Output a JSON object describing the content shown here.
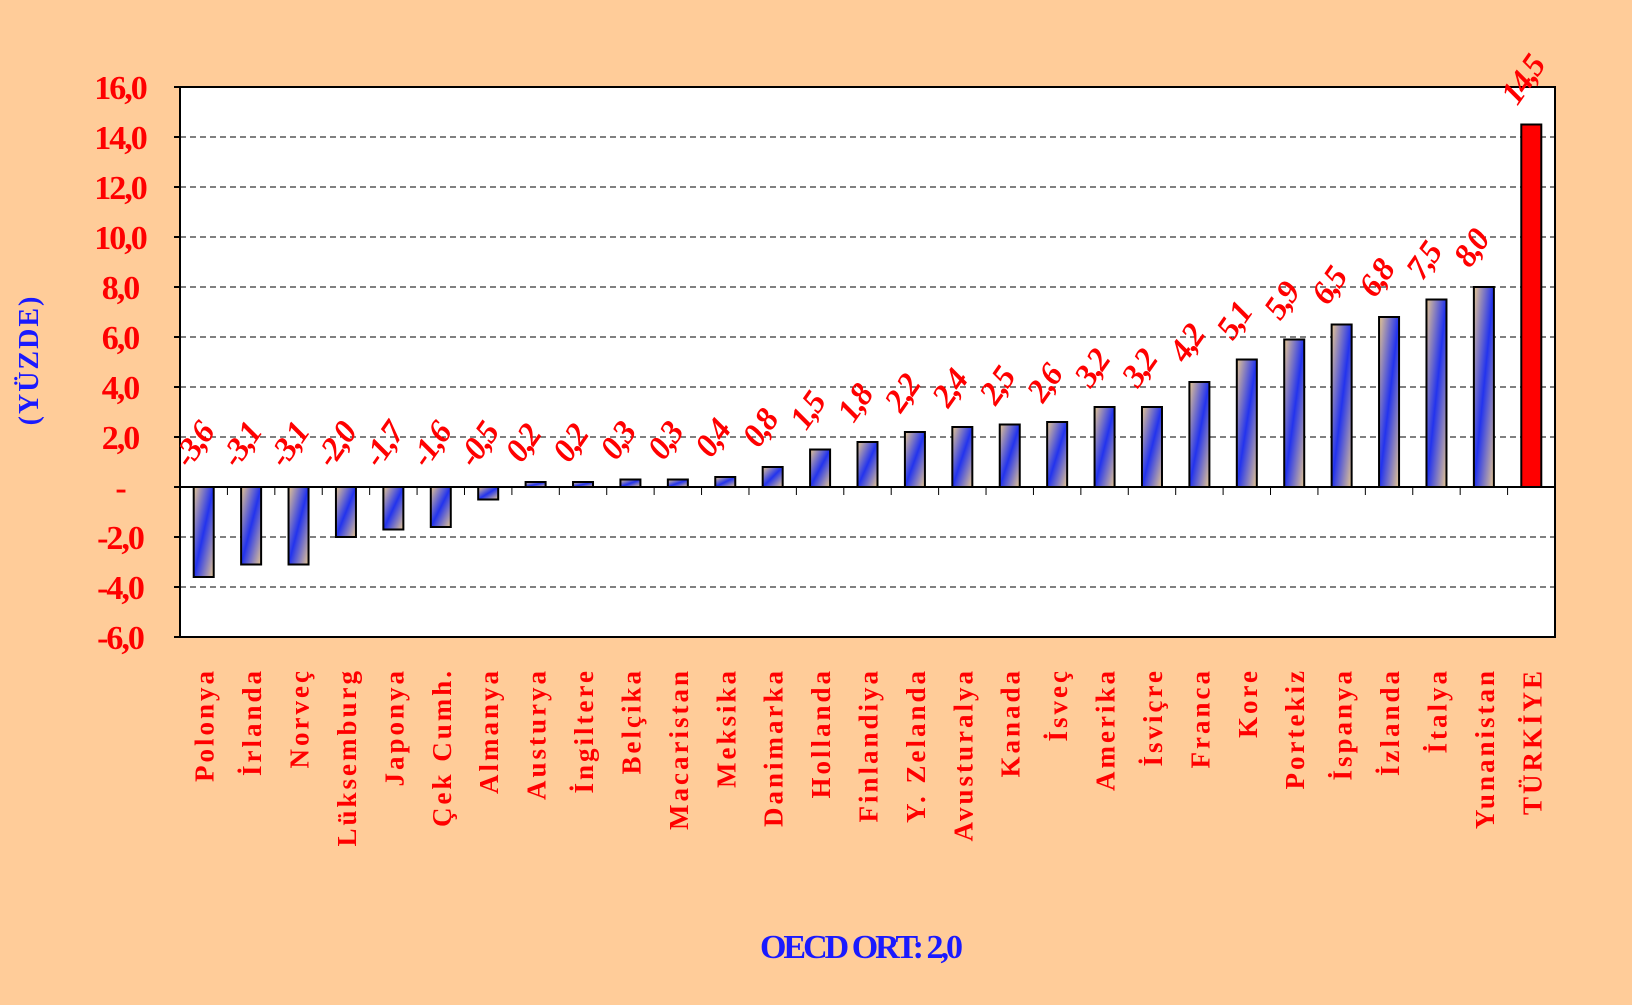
{
  "chart_data": {
    "type": "bar",
    "categories": [
      "Polonya",
      "İrlanda",
      "Norveç",
      "Lüksemburg",
      "Japonya",
      "Çek Cumh.",
      "Almanya",
      "Austurya",
      "İngiltere",
      "Belçika",
      "Macaristan",
      "Meksika",
      "Danimarka",
      "Hollanda",
      "Finlandiya",
      "Y. Zelanda",
      "Avusturalya",
      "Kanada",
      "İsveç",
      "Amerika",
      "İsviçre",
      "Franca",
      "Kore",
      "Portekiz",
      "İspanya",
      "İzlanda",
      "İtalya",
      "Yunanistan",
      "TÜRKİYE"
    ],
    "values": [
      -3.6,
      -3.1,
      -3.1,
      -2.0,
      -1.7,
      -1.6,
      -0.5,
      0.2,
      0.2,
      0.3,
      0.3,
      0.4,
      0.8,
      1.5,
      1.8,
      2.2,
      2.4,
      2.5,
      2.6,
      3.2,
      3.2,
      4.2,
      5.1,
      5.9,
      6.5,
      6.8,
      7.5,
      8.0,
      14.5
    ],
    "value_labels": [
      "-3,6",
      "-3,1",
      "-3,1",
      "-2,0",
      "-1,7",
      "-1,6",
      "-0,5",
      "0,2",
      "0,2",
      "0,3",
      "0,3",
      "0,4",
      "0,8",
      "1,5",
      "1,8",
      "2,2",
      "2,4",
      "2,5",
      "2,6",
      "3,2",
      "3,2",
      "4,2",
      "5,1",
      "5,9",
      "6,5",
      "6,8",
      "7,5",
      "8,0",
      "14,5"
    ],
    "colors": [
      "#2233ee",
      "#2233ee",
      "#2233ee",
      "#2233ee",
      "#2233ee",
      "#2233ee",
      "#2233ee",
      "#2233ee",
      "#2233ee",
      "#2233ee",
      "#2233ee",
      "#2233ee",
      "#2233ee",
      "#2233ee",
      "#2233ee",
      "#2233ee",
      "#2233ee",
      "#2233ee",
      "#2233ee",
      "#2233ee",
      "#2233ee",
      "#2233ee",
      "#2233ee",
      "#2233ee",
      "#2233ee",
      "#2233ee",
      "#2233ee",
      "#2233ee",
      "#ff0000"
    ],
    "ylabel": "(YÜZDE)",
    "annotation": "OECD ORT: 2,0",
    "ylim": [
      -6,
      16
    ],
    "yticks": [
      {
        "value": -6,
        "label": "-6,0"
      },
      {
        "value": -4,
        "label": "-4,0"
      },
      {
        "value": -2,
        "label": "-2,0"
      },
      {
        "value": 0,
        "label": "-"
      },
      {
        "value": 2,
        "label": "2,0"
      },
      {
        "value": 4,
        "label": "4,0"
      },
      {
        "value": 6,
        "label": "6,0"
      },
      {
        "value": 8,
        "label": "8,0"
      },
      {
        "value": 10,
        "label": "10,0"
      },
      {
        "value": 12,
        "label": "12,0"
      },
      {
        "value": 14,
        "label": "14,0"
      },
      {
        "value": 16,
        "label": "16,0"
      }
    ],
    "grid": true
  }
}
